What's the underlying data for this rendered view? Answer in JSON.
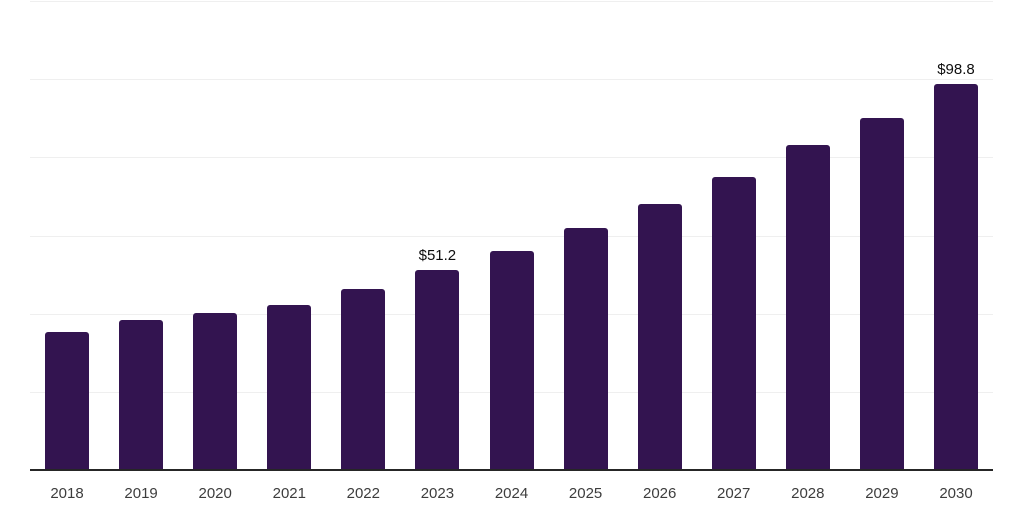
{
  "chart_data": {
    "type": "bar",
    "title": "",
    "xlabel": "",
    "ylabel": "",
    "categories": [
      "2018",
      "2019",
      "2020",
      "2021",
      "2022",
      "2023",
      "2024",
      "2025",
      "2026",
      "2027",
      "2028",
      "2029",
      "2030"
    ],
    "values": [
      35.3,
      38.5,
      40.3,
      42.3,
      46.3,
      51.2,
      56.0,
      61.9,
      68.0,
      75.0,
      83.2,
      90.2,
      98.8
    ],
    "data_labels": [
      {
        "category": "2023",
        "text": "$51.2"
      },
      {
        "category": "2030",
        "text": "$98.8"
      }
    ],
    "ylim": [
      0,
      120
    ],
    "gridline_step": 20,
    "grid": "horizontal",
    "y_tick_labels_shown": false,
    "legend_position": "none",
    "colors": {
      "bar": "#331450",
      "gridline": "#efefef",
      "axis_line": "#262626",
      "data_label_text": "#0d0d0d",
      "x_tick_text": "#3d3d3d",
      "background": "#ffffff"
    }
  }
}
